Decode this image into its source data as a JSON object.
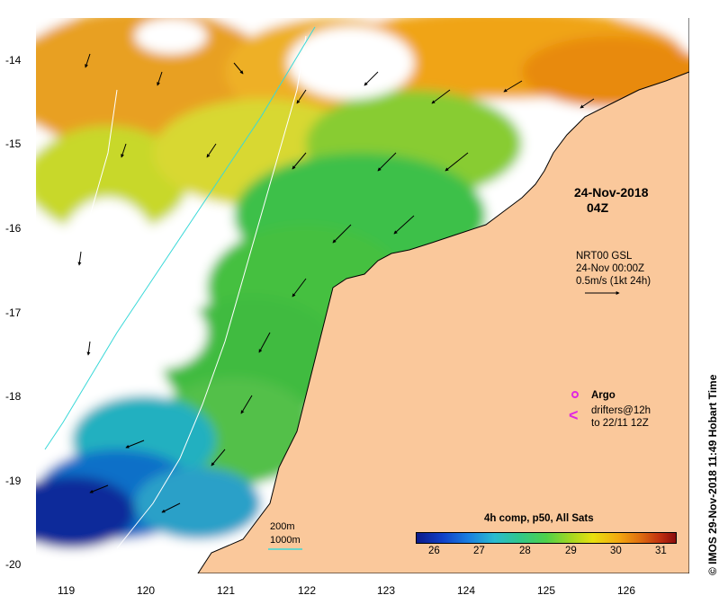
{
  "map": {
    "date": "24-Nov-2018",
    "time": "04Z",
    "credit": "© IMOS 29-Nov-2018 11:49 Hobart Time",
    "lat_labels": [
      "-14",
      "-15",
      "-16",
      "-17",
      "-18",
      "-19",
      "-20"
    ],
    "lon_labels": [
      "119",
      "120",
      "121",
      "122",
      "123",
      "124",
      "125",
      "126"
    ],
    "current_key": {
      "line1": "NRT00 GSL",
      "line2": "24-Nov 00:00Z",
      "line3": "0.5m/s (1kt 24h)"
    },
    "argo_label": "Argo",
    "drifters": {
      "symbol": "<",
      "line1": "drifters@12h",
      "line2": "to 22/11 12Z"
    },
    "isobaths": {
      "label_200": "200m",
      "label_1000": "1000m",
      "color_200": "#ffffff",
      "color_1000": "#38d8d8"
    },
    "colorbar": {
      "title": "4h comp, p50, All Sats",
      "ticks": [
        "26",
        "27",
        "28",
        "29",
        "30",
        "31"
      ]
    },
    "colors": {
      "land": "#fac89b",
      "argo": "#e028e0",
      "drifter": "#e028e0"
    }
  }
}
